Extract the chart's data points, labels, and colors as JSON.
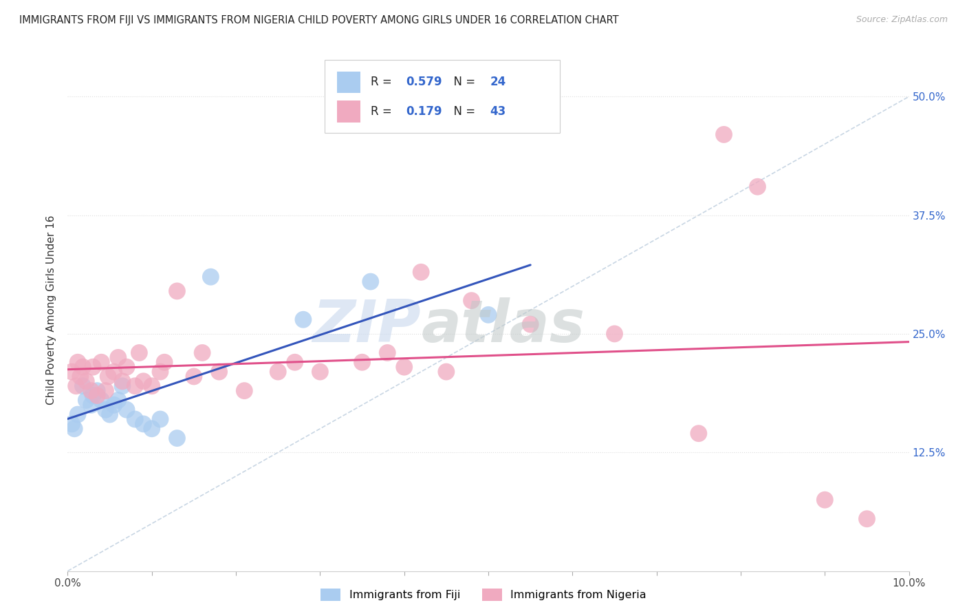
{
  "title": "IMMIGRANTS FROM FIJI VS IMMIGRANTS FROM NIGERIA CHILD POVERTY AMONG GIRLS UNDER 16 CORRELATION CHART",
  "source": "Source: ZipAtlas.com",
  "ylabel": "Child Poverty Among Girls Under 16",
  "fiji_R": "0.579",
  "fiji_N": "24",
  "nigeria_R": "0.179",
  "nigeria_N": "43",
  "fiji_color": "#aaccf0",
  "nigeria_color": "#f0aac0",
  "fiji_line_color": "#3355bb",
  "nigeria_line_color": "#e0508a",
  "ref_line_color": "#bbccdd",
  "fiji_scatter": [
    [
      0.05,
      15.5
    ],
    [
      0.08,
      15.0
    ],
    [
      0.12,
      16.5
    ],
    [
      0.18,
      19.5
    ],
    [
      0.22,
      18.0
    ],
    [
      0.28,
      17.5
    ],
    [
      0.3,
      18.5
    ],
    [
      0.35,
      19.0
    ],
    [
      0.4,
      18.0
    ],
    [
      0.45,
      17.0
    ],
    [
      0.5,
      16.5
    ],
    [
      0.55,
      17.5
    ],
    [
      0.6,
      18.0
    ],
    [
      0.65,
      19.5
    ],
    [
      0.7,
      17.0
    ],
    [
      0.8,
      16.0
    ],
    [
      0.9,
      15.5
    ],
    [
      1.0,
      15.0
    ],
    [
      1.1,
      16.0
    ],
    [
      1.3,
      14.0
    ],
    [
      1.7,
      31.0
    ],
    [
      2.8,
      26.5
    ],
    [
      3.6,
      30.5
    ],
    [
      5.0,
      27.0
    ]
  ],
  "nigeria_scatter": [
    [
      0.05,
      21.0
    ],
    [
      0.1,
      19.5
    ],
    [
      0.12,
      22.0
    ],
    [
      0.15,
      20.5
    ],
    [
      0.18,
      21.5
    ],
    [
      0.22,
      20.0
    ],
    [
      0.28,
      19.0
    ],
    [
      0.3,
      21.5
    ],
    [
      0.35,
      18.5
    ],
    [
      0.4,
      22.0
    ],
    [
      0.45,
      19.0
    ],
    [
      0.48,
      20.5
    ],
    [
      0.55,
      21.0
    ],
    [
      0.6,
      22.5
    ],
    [
      0.65,
      20.0
    ],
    [
      0.7,
      21.5
    ],
    [
      0.8,
      19.5
    ],
    [
      0.85,
      23.0
    ],
    [
      0.9,
      20.0
    ],
    [
      1.0,
      19.5
    ],
    [
      1.1,
      21.0
    ],
    [
      1.15,
      22.0
    ],
    [
      1.3,
      29.5
    ],
    [
      1.5,
      20.5
    ],
    [
      1.6,
      23.0
    ],
    [
      1.8,
      21.0
    ],
    [
      2.1,
      19.0
    ],
    [
      2.5,
      21.0
    ],
    [
      2.7,
      22.0
    ],
    [
      3.0,
      21.0
    ],
    [
      3.5,
      22.0
    ],
    [
      3.8,
      23.0
    ],
    [
      4.0,
      21.5
    ],
    [
      4.2,
      31.5
    ],
    [
      4.5,
      21.0
    ],
    [
      4.8,
      28.5
    ],
    [
      5.5,
      26.0
    ],
    [
      6.5,
      25.0
    ],
    [
      7.5,
      14.5
    ],
    [
      7.8,
      46.0
    ],
    [
      8.2,
      40.5
    ],
    [
      9.0,
      7.5
    ],
    [
      9.5,
      5.5
    ]
  ],
  "xlim": [
    0,
    10
  ],
  "ylim": [
    0,
    55
  ],
  "ytick_vals": [
    12.5,
    25.0,
    37.5,
    50.0
  ],
  "xtick_positions": [
    0,
    1,
    2,
    3,
    4,
    5,
    6,
    7,
    8,
    9,
    10
  ],
  "fig_width": 14.06,
  "fig_height": 8.92,
  "background_color": "#ffffff",
  "legend_fiji_label": "Immigrants from Fiji",
  "legend_nigeria_label": "Immigrants from Nigeria"
}
